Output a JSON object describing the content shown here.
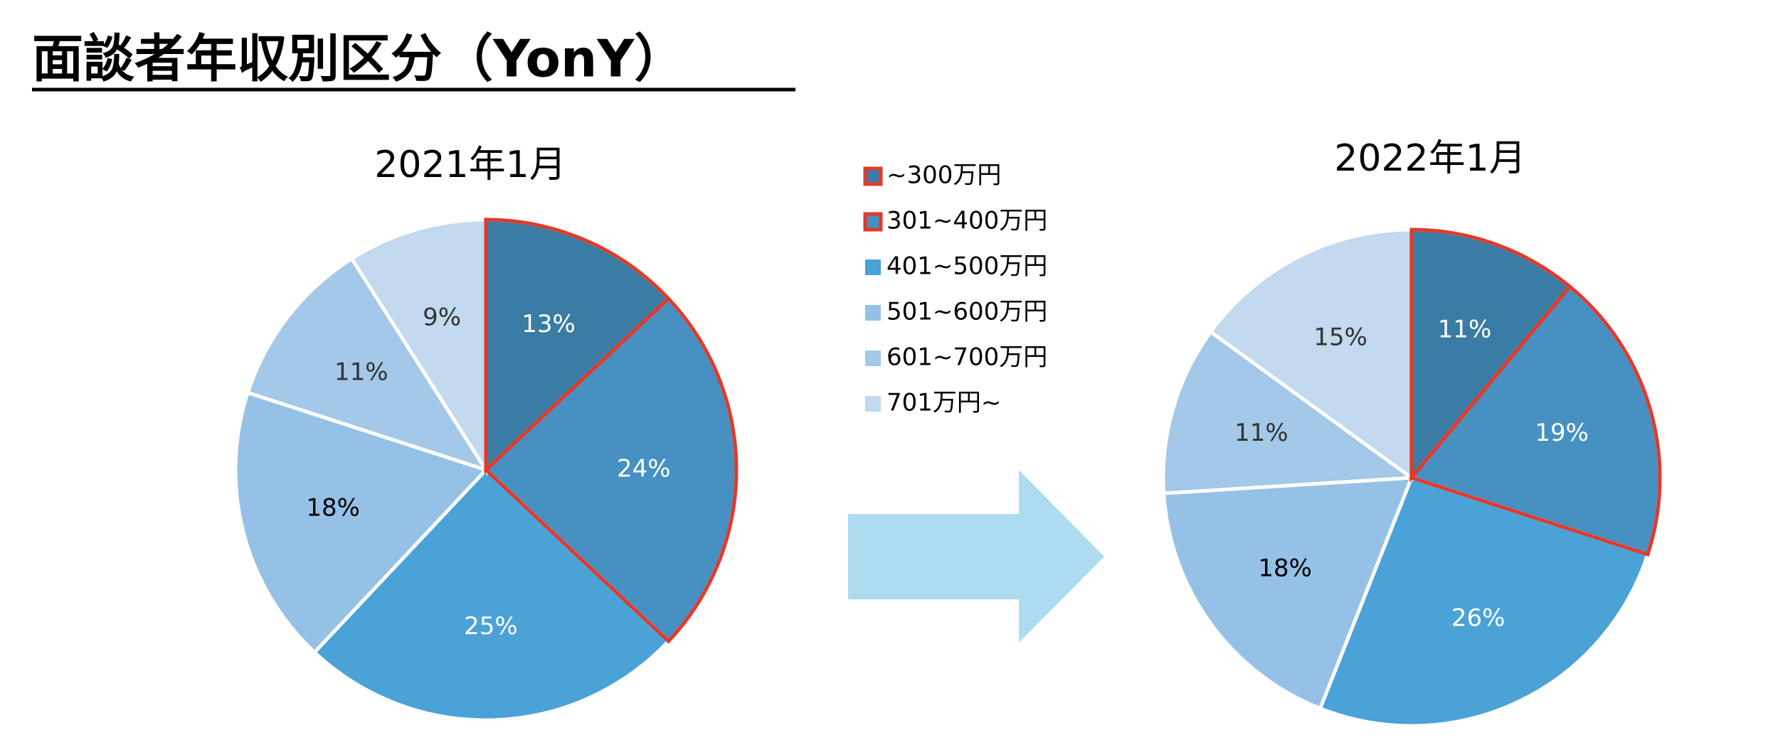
{
  "title": "面談者年収別区分（YonY）",
  "chart_data": [
    {
      "type": "pie",
      "title": "2021年1月",
      "categories": [
        "~300万円",
        "301~400万円",
        "401~500万円",
        "501~600万円",
        "601~700万円",
        "701万円~"
      ],
      "values": [
        13,
        24,
        25,
        18,
        11,
        9
      ],
      "value_labels": [
        "13%",
        "24%",
        "25%",
        "18%",
        "11%",
        "9%"
      ],
      "colors": [
        "#3a7ca3",
        "#4690c2",
        "#4aa2d7",
        "#95c1e6",
        "#a3c8e8",
        "#c2d9ef"
      ],
      "highlight": [
        0,
        1
      ],
      "highlight_color": "#e2392a"
    },
    {
      "type": "pie",
      "title": "2022年1月",
      "values": [
        11,
        19,
        26,
        18,
        11,
        15
      ],
      "value_labels": [
        "11%",
        "19%",
        "26%",
        "18%",
        "11%",
        "15%"
      ],
      "colors": [
        "#3a7ca3",
        "#4690c2",
        "#4aa2d7",
        "#95c1e6",
        "#a3c8e8",
        "#c2d9ef"
      ],
      "highlight": [
        0,
        1
      ],
      "highlight_color": "#e2392a"
    }
  ]
}
